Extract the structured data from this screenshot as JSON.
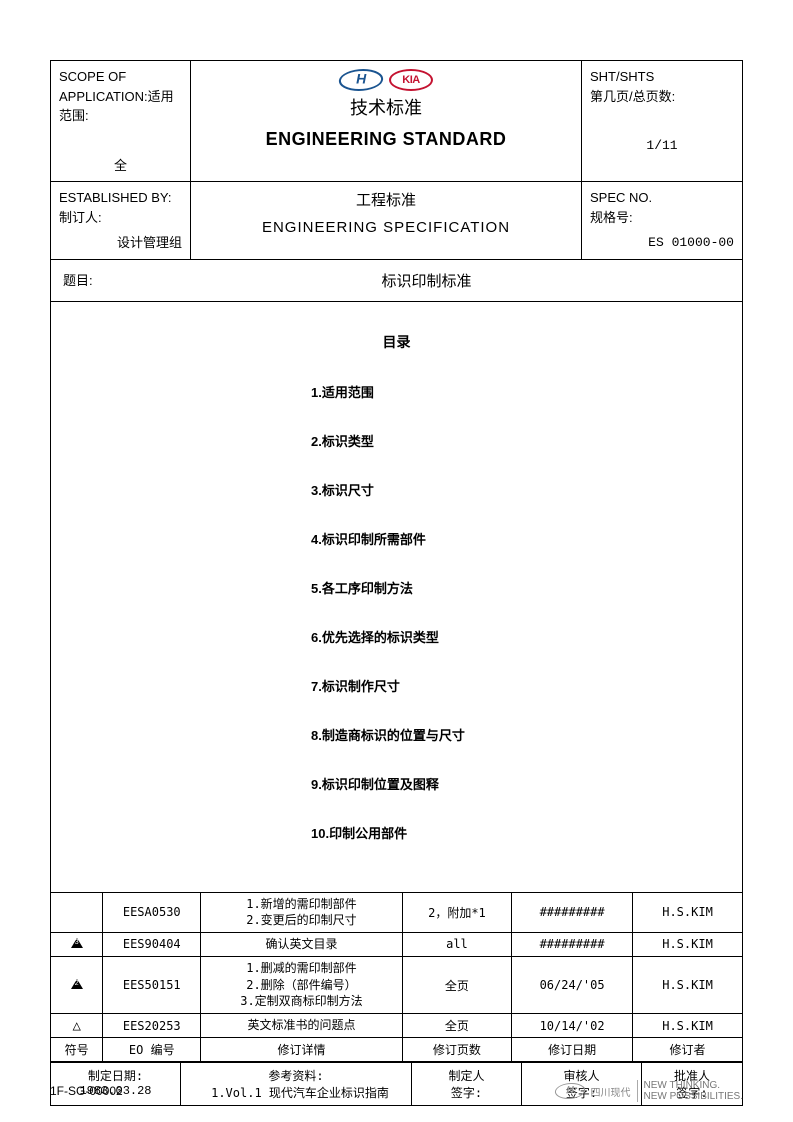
{
  "header": {
    "scope_label": "SCOPE OF APPLICATION:适用范围:",
    "scope_value": "全",
    "title_cn": "技术标准",
    "title_en": "ENGINEERING STANDARD",
    "sheet_label": "SHT/SHTS",
    "sheet_label_cn": "第几页/总页数:",
    "sheet_value": "1/11",
    "established_label": "ESTABLISHED BY:",
    "established_label_cn": "制订人:",
    "established_value": "设计管理组",
    "sub_title_cn": "工程标准",
    "sub_title_en": "ENGINEERING  SPECIFICATION",
    "spec_label": "SPEC NO.",
    "spec_label_cn": "规格号:",
    "spec_value": "ES 01000-00"
  },
  "subject": {
    "label": "题目:",
    "value": "标识印制标准"
  },
  "toc": {
    "heading": "目录",
    "items": [
      "1.适用范围",
      "2.标识类型",
      "3.标识尺寸",
      "4.标识印制所需部件",
      "5.各工序印制方法",
      "6.优先选择的标识类型",
      "7.标识制作尺寸",
      "8.制造商标识的位置与尺寸",
      "9.标识印制位置及图释",
      "10.印制公用部件"
    ]
  },
  "revisions": {
    "rows": [
      {
        "sym": "",
        "eo": "EESA0530",
        "detail": "1.新增的需印制部件\n2.变更后的印制尺寸",
        "pages": "2，附加*1",
        "date": "#########",
        "rev": "H.S.KIM"
      },
      {
        "sym": "tri3",
        "eo": "EES90404",
        "detail": "确认英文目录",
        "pages": "all",
        "date": "#########",
        "rev": "H.S.KIM"
      },
      {
        "sym": "tri2",
        "eo": "EES50151",
        "detail": "1.删减的需印制部件\n2.删除（部件编号）\n3.定制双商标印制方法",
        "pages": "全页",
        "date": "06/24/'05",
        "rev": "H.S.KIM"
      },
      {
        "sym": "tri1",
        "eo": "EES20253",
        "detail": "英文标准书的问题点",
        "pages": "全页",
        "date": "10/14/'02",
        "rev": "H.S.KIM"
      }
    ],
    "headers": {
      "sym": "符号",
      "eo": "EO 编号",
      "detail": "修订详情",
      "pages": "修订页数",
      "date": "修订日期",
      "rev": "修订者"
    }
  },
  "bottom": {
    "date_label": "制定日期:",
    "date_value": "1983.03.28",
    "ref_label": "参考资料:",
    "ref_value": "1.Vol.1 现代汽车企业标识指南",
    "maker_label": "制定人",
    "sign_label": "签字:",
    "checker_label": "审核人",
    "approver_label": "批准人"
  },
  "footer": {
    "doc_no": "1F-SG-00002",
    "brand_cn": "四川现代",
    "tagline1": "NEW THINKING.",
    "tagline2": "NEW POSSIBILITIES."
  },
  "logos": {
    "kia_text": "KIA"
  }
}
